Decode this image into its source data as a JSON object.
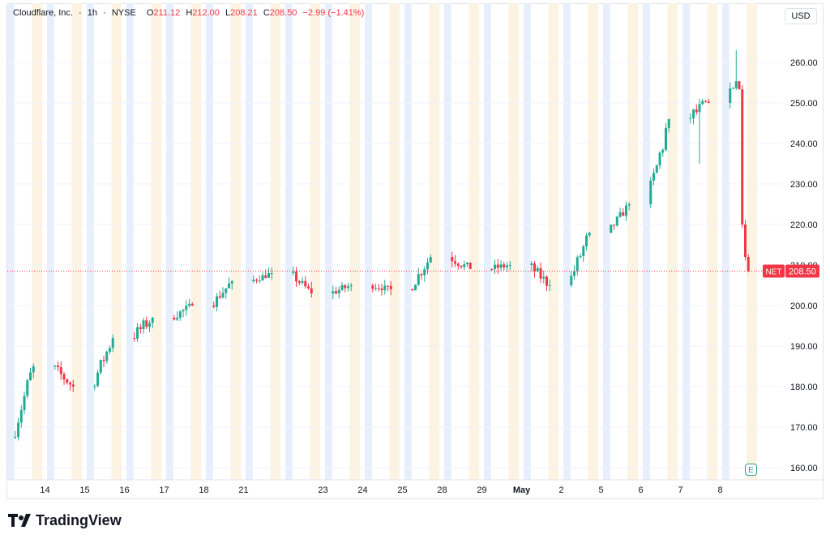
{
  "header": {
    "symbol": "Cloudflare, Inc.",
    "interval": "1h",
    "exchange": "NYSE",
    "o_label": "O",
    "open": "211.12",
    "h_label": "H",
    "high": "212.00",
    "l_label": "L",
    "low": "208.21",
    "c_label": "C",
    "close": "208.50",
    "change": "−2.99 (−1.41%)"
  },
  "currency": "USD",
  "price_tag": {
    "ticker": "NET",
    "value": "208.50"
  },
  "brand": {
    "name": "TradingView"
  },
  "colors": {
    "up": "#22ab94",
    "down": "#f23645",
    "grid": "#f0f3fa",
    "premarket": "#e8effc",
    "postmarket": "#fdf3e3",
    "axis_text": "#131722"
  },
  "chart_data": {
    "type": "candlestick",
    "ylim": [
      155,
      265
    ],
    "y_ticks": [
      160,
      170,
      180,
      190,
      200,
      210,
      220,
      230,
      240,
      250,
      260
    ],
    "last_price": 208.5,
    "x_labels": [
      "14",
      "15",
      "16",
      "17",
      "18",
      "21",
      "23",
      "24",
      "25",
      "28",
      "29",
      "May",
      "2",
      "5",
      "6",
      "7",
      "8"
    ],
    "days": 19,
    "daily_ohlc": [
      [
        167.5,
        186,
        166.5,
        185
      ],
      [
        185,
        188.5,
        177,
        180
      ],
      [
        180,
        193,
        179,
        192
      ],
      [
        192,
        204.5,
        191,
        197
      ],
      [
        197,
        202,
        193.5,
        200
      ],
      [
        200,
        207,
        197.5,
        206
      ],
      [
        206,
        211.5,
        205.5,
        208
      ],
      [
        208,
        211.5,
        202,
        203
      ],
      [
        203,
        207,
        199,
        205
      ],
      [
        205,
        208,
        202,
        204
      ],
      [
        204,
        215,
        203,
        212
      ],
      [
        212,
        216.5,
        207,
        209
      ],
      [
        209,
        214.5,
        207,
        210
      ],
      [
        210,
        211,
        199.5,
        205
      ],
      [
        205,
        219,
        204.5,
        218
      ],
      [
        218,
        226,
        217,
        225
      ],
      [
        225,
        249,
        224,
        246
      ],
      [
        246,
        251,
        235,
        250
      ],
      [
        250,
        263,
        208.2,
        208.5
      ]
    ]
  }
}
